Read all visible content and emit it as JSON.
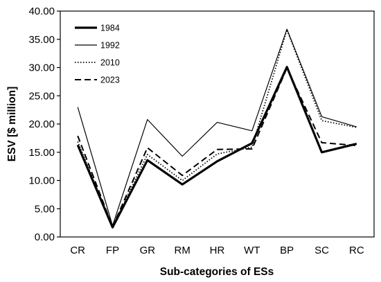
{
  "chart_data": {
    "type": "line",
    "xlabel": "Sub-categories of ESs",
    "ylabel": "ESV [$ million]",
    "ylim": [
      0,
      40
    ],
    "yticks": [
      "0.00",
      "5.00",
      "10.00",
      "15.00",
      "20.00",
      "25.00",
      "30.00",
      "35.00",
      "40.00"
    ],
    "categories": [
      "CR",
      "FP",
      "GR",
      "RM",
      "HR",
      "WT",
      "BP",
      "SC",
      "RC"
    ],
    "grid": false,
    "legend_position": "top-left",
    "series": [
      {
        "name": "1984",
        "style": "thick-solid",
        "color": "#000000",
        "values": [
          16.3,
          1.7,
          13.6,
          9.3,
          13.4,
          16.6,
          30.1,
          15.0,
          16.5
        ]
      },
      {
        "name": "1992",
        "style": "thin-solid",
        "color": "#000000",
        "values": [
          23.0,
          2.0,
          20.8,
          14.3,
          20.3,
          18.8,
          36.8,
          21.3,
          19.5
        ]
      },
      {
        "name": "2010",
        "style": "dotted",
        "color": "#000000",
        "values": [
          16.9,
          1.8,
          14.6,
          10.0,
          14.7,
          15.9,
          36.7,
          20.6,
          19.4
        ]
      },
      {
        "name": "2023",
        "style": "dashed",
        "color": "#000000",
        "values": [
          17.9,
          1.8,
          15.8,
          10.9,
          15.5,
          15.6,
          29.9,
          16.7,
          16.2
        ]
      }
    ]
  }
}
